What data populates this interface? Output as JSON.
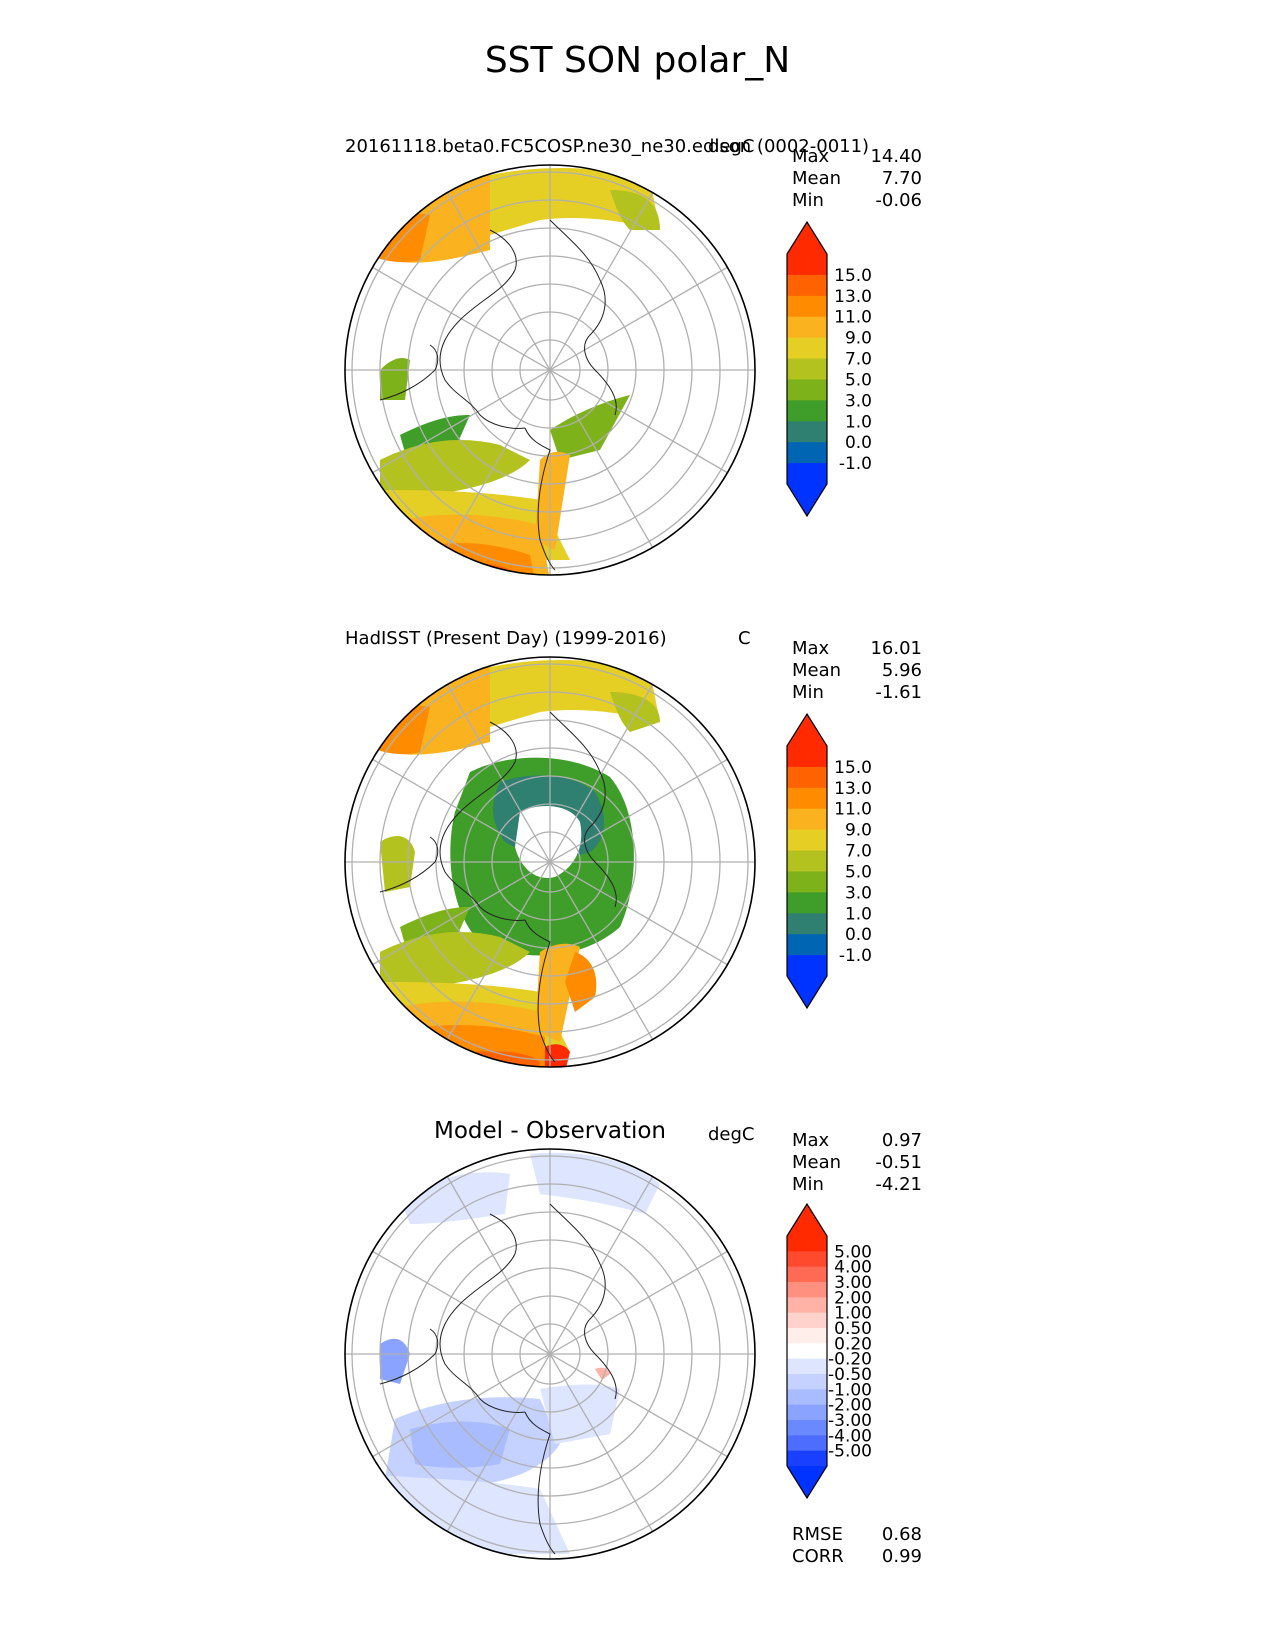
{
  "title": "SST SON polar_N",
  "panels": [
    {
      "left_title": "20161118.beta0.FC5COSP.ne30_ne30.edison (0002-0011)",
      "units": "degC",
      "center_title": "",
      "stats": [
        {
          "label": "Max",
          "value": "14.40"
        },
        {
          "label": "Mean",
          "value": "7.70"
        },
        {
          "label": "Min",
          "value": "-0.06"
        }
      ],
      "colorbar": {
        "levels": [
          "15.0",
          "13.0",
          "11.0",
          "9.0",
          "7.0",
          "5.0",
          "3.0",
          "1.0",
          "0.0",
          "-1.0"
        ],
        "colors": [
          "#ff2a00",
          "#ff6200",
          "#ff8c00",
          "#fbb21f",
          "#e5cf24",
          "#b4c21f",
          "#7db21a",
          "#3f9e2a",
          "#2f8070",
          "#0066b3",
          "#0033ff"
        ],
        "top_color": "#ff2a00",
        "bottom_color": "#0033ff"
      }
    },
    {
      "left_title": "HadISST (Present Day) (1999-2016)",
      "units": "C",
      "center_title": "",
      "stats": [
        {
          "label": "Max",
          "value": "16.01"
        },
        {
          "label": "Mean",
          "value": "5.96"
        },
        {
          "label": "Min",
          "value": "-1.61"
        }
      ],
      "colorbar": {
        "levels": [
          "15.0",
          "13.0",
          "11.0",
          "9.0",
          "7.0",
          "5.0",
          "3.0",
          "1.0",
          "0.0",
          "-1.0"
        ],
        "colors": [
          "#ff2a00",
          "#ff6200",
          "#ff8c00",
          "#fbb21f",
          "#e5cf24",
          "#b4c21f",
          "#7db21a",
          "#3f9e2a",
          "#2f8070",
          "#0066b3",
          "#0033ff"
        ],
        "top_color": "#ff2a00",
        "bottom_color": "#0033ff"
      }
    },
    {
      "left_title": "",
      "units": "degC",
      "center_title": "Model - Observation",
      "stats": [
        {
          "label": "Max",
          "value": "0.97"
        },
        {
          "label": "Mean",
          "value": "-0.51"
        },
        {
          "label": "Min",
          "value": "-4.21"
        }
      ],
      "extra_stats": [
        {
          "label": "RMSE",
          "value": "0.68"
        },
        {
          "label": "CORR",
          "value": "0.99"
        }
      ],
      "colorbar": {
        "levels": [
          "5.00",
          "4.00",
          "3.00",
          "2.00",
          "1.00",
          "0.50",
          "0.20",
          "-0.20",
          "-0.50",
          "-1.00",
          "-2.00",
          "-3.00",
          "-4.00",
          "-5.00"
        ],
        "colors": [
          "#ff2a00",
          "#ff4a2e",
          "#ff6a55",
          "#ff8f7e",
          "#ffb2a5",
          "#ffd3cb",
          "#ffeeea",
          "#ffffff",
          "#dde5ff",
          "#c5d2ff",
          "#a8bcff",
          "#8aa3ff",
          "#6b89ff",
          "#4d6dff",
          "#1a40ff"
        ],
        "top_color": "#ff2a00",
        "bottom_color": "#0033ff"
      }
    }
  ]
}
